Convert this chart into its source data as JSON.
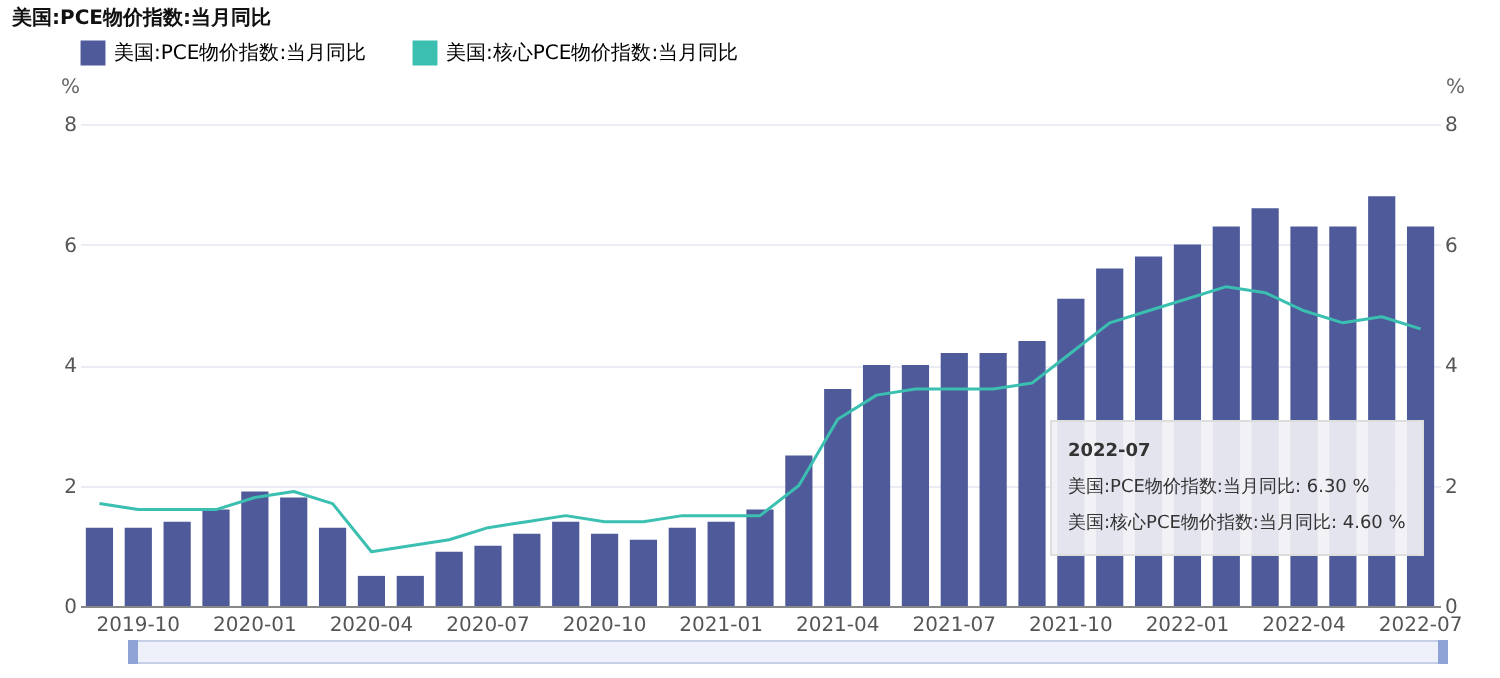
{
  "chart_data": {
    "type": "bar",
    "title": "美国:PCE物价指数:当月同比",
    "categories": [
      null,
      "2019-10",
      null,
      null,
      "2020-01",
      null,
      null,
      "2020-04",
      null,
      null,
      "2020-07",
      null,
      null,
      "2020-10",
      null,
      null,
      "2021-01",
      null,
      null,
      "2021-04",
      null,
      null,
      "2021-07",
      null,
      null,
      "2021-10",
      null,
      null,
      "2022-01",
      null,
      null,
      "2022-04",
      null,
      null,
      "2022-07"
    ],
    "series": [
      {
        "name": "美国:PCE物价指数:当月同比",
        "color": "#4e5a9a",
        "values": [
          1.3,
          1.3,
          1.4,
          1.6,
          1.9,
          1.8,
          1.3,
          0.5,
          0.5,
          0.9,
          1.0,
          1.2,
          1.4,
          1.2,
          1.1,
          1.3,
          1.4,
          1.6,
          2.5,
          3.6,
          4.0,
          4.0,
          4.2,
          4.2,
          4.4,
          5.1,
          5.6,
          5.8,
          6.0,
          6.3,
          6.6,
          6.3,
          6.3,
          6.8,
          6.3
        ]
      },
      {
        "name": "美国:核心PCE物价指数:当月同比",
        "type": "line",
        "axis": "y2",
        "color": "#3bbfb0",
        "values": [
          1.7,
          1.6,
          1.6,
          1.6,
          1.8,
          1.9,
          1.7,
          0.9,
          1.0,
          1.1,
          1.3,
          1.4,
          1.5,
          1.4,
          1.4,
          1.5,
          1.5,
          1.5,
          2.0,
          3.1,
          3.5,
          3.6,
          3.6,
          3.6,
          3.7,
          4.2,
          4.7,
          4.9,
          5.1,
          5.3,
          5.2,
          4.9,
          4.7,
          4.8,
          4.6
        ]
      }
    ],
    "ylabel": "%",
    "y2label": "%",
    "ylim": [
      0,
      8
    ],
    "yticks": [
      0,
      2,
      4,
      6,
      8
    ],
    "y2lim": [
      0,
      8
    ],
    "y2ticks": [
      0,
      2,
      4,
      6,
      8
    ],
    "grid": "y",
    "legend": "top left",
    "marker": "none",
    "annotations": [
      "2022-07",
      "美国:PCE物价指数:当月同比:  6.30 %",
      "美国:核心PCE物价指数:当月同比:  4.60 %"
    ]
  }
}
